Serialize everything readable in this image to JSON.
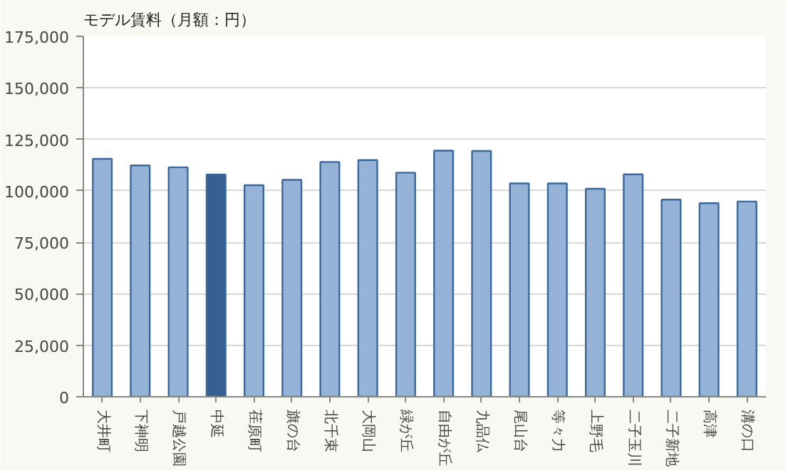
{
  "chart_data": {
    "type": "bar",
    "title": "モデル賃料（月額：円）",
    "categories": [
      "大井町",
      "下神明",
      "戸越公園",
      "中延",
      "荏原町",
      "旗の台",
      "北千束",
      "大岡山",
      "緑が丘",
      "自由が丘",
      "九品仏",
      "尾山台",
      "等々力",
      "上野毛",
      "二子玉川",
      "二子新地",
      "高津",
      "溝の口"
    ],
    "values": [
      115500,
      112300,
      111400,
      107900,
      102700,
      105300,
      114000,
      114900,
      108800,
      119500,
      119300,
      103600,
      103600,
      101000,
      108000,
      95700,
      94000,
      94800
    ],
    "colors": [
      "#95b3d7",
      "#95b3d7",
      "#95b3d7",
      "#376092",
      "#95b3d7",
      "#95b3d7",
      "#95b3d7",
      "#95b3d7",
      "#95b3d7",
      "#95b3d7",
      "#95b3d7",
      "#95b3d7",
      "#95b3d7",
      "#95b3d7",
      "#95b3d7",
      "#95b3d7",
      "#95b3d7",
      "#95b3d7"
    ],
    "ylim": [
      0,
      175000
    ],
    "yticks": [
      0,
      {
        "value": 25000,
        "label": "25,000"
      },
      {
        "value": 50000,
        "label": "50,000"
      },
      {
        "value": 75000,
        "label": "75,000"
      },
      {
        "value": 100000,
        "label": "100,000"
      },
      {
        "value": 125000,
        "label": "125,000"
      },
      {
        "value": 150000,
        "label": "150,000"
      },
      {
        "value": 175000,
        "label": "175,000"
      }
    ],
    "grid": "y"
  }
}
